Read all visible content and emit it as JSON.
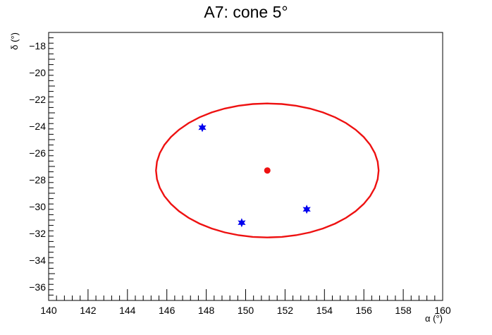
{
  "chart_data": {
    "type": "scatter",
    "title": "A7: cone 5°",
    "xlabel": "α (°)",
    "ylabel": "δ (°)",
    "xlim": [
      140,
      160
    ],
    "ylim": [
      -37,
      -17
    ],
    "x_major_ticks": [
      140,
      142,
      144,
      146,
      148,
      150,
      152,
      154,
      156,
      158,
      160
    ],
    "x_tick_labels": [
      "140",
      "142",
      "144",
      "146",
      "148",
      "150",
      "152",
      "154",
      "156",
      "158",
      "160"
    ],
    "y_major_ticks": [
      -36,
      -34,
      -32,
      -30,
      -28,
      -26,
      -24,
      -22,
      -20,
      -18
    ],
    "y_tick_labels": [
      "−36",
      "−34",
      "−32",
      "−30",
      "−28",
      "−26",
      "−24",
      "−22",
      "−20",
      "−18"
    ],
    "grid": false,
    "series": [
      {
        "marker": "circle",
        "color": "#ee1111",
        "points": [
          {
            "x": 151.1,
            "y": -27.3
          }
        ]
      },
      {
        "marker": "star",
        "color": "#0000ee",
        "points": [
          {
            "x": 147.8,
            "y": -24.1
          },
          {
            "x": 149.8,
            "y": -31.2
          },
          {
            "x": 153.1,
            "y": -30.2
          }
        ]
      }
    ],
    "cone": {
      "shape": "ellipse",
      "color": "#ee1111",
      "center": {
        "x": 151.1,
        "y": -27.3
      },
      "half_width": 5.65,
      "half_height": 5.0
    }
  }
}
